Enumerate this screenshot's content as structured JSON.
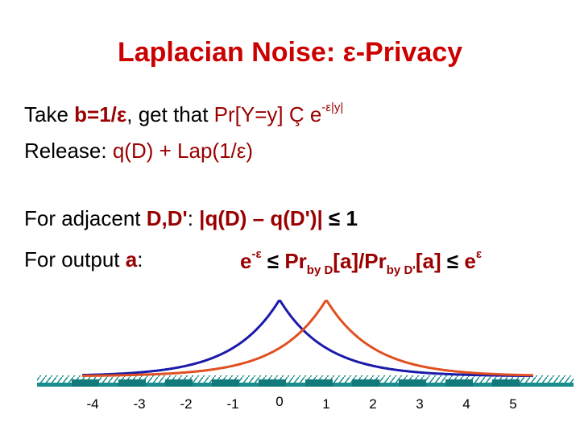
{
  "title": "Laplacian Noise: ε-Privacy",
  "line1": {
    "t1": "Take ",
    "b": "b=1/ε",
    "t2": ", get that ",
    "pr": "Pr[Y=y] Ç ",
    "e": "e",
    "exp": "-ε|y|"
  },
  "line2": {
    "t1": "Release: ",
    "expr": "q(D) + Lap(1/ε)"
  },
  "line3": {
    "t1": "For adjacent ",
    "dd": "D,D'",
    "colon": ": ",
    "abs": "|q(D) – q(D')|",
    "le": " ≤ 1"
  },
  "line4": {
    "t1": "For output ",
    "a": "a",
    "colon": ":",
    "e1": "e",
    "exp1": "-ε",
    "le1": " ≤ ",
    "pr1": "Pr",
    "sub1": "by D",
    "arg1": "[a]/",
    "pr2": "Pr",
    "sub2": "by D'",
    "arg2": "[a]",
    "le2": " ≤ ",
    "e2": "e",
    "exp2": "ε"
  },
  "axis": {
    "ticks": [
      "-4",
      "-3",
      "-2",
      "-1",
      "0",
      "1",
      "2",
      "3",
      "4",
      "5"
    ],
    "values": [
      -4,
      -3,
      -2,
      -1,
      0,
      1,
      2,
      3,
      4,
      5
    ]
  },
  "curves": [
    {
      "color": "#1a1aaa",
      "center": 0,
      "epsilon": 1
    },
    {
      "color": "#e05020",
      "center": 1,
      "epsilon": 1
    }
  ],
  "colors": {
    "title": "#cc0000",
    "emphasis": "#990000",
    "axis": "#1a8c8c"
  }
}
